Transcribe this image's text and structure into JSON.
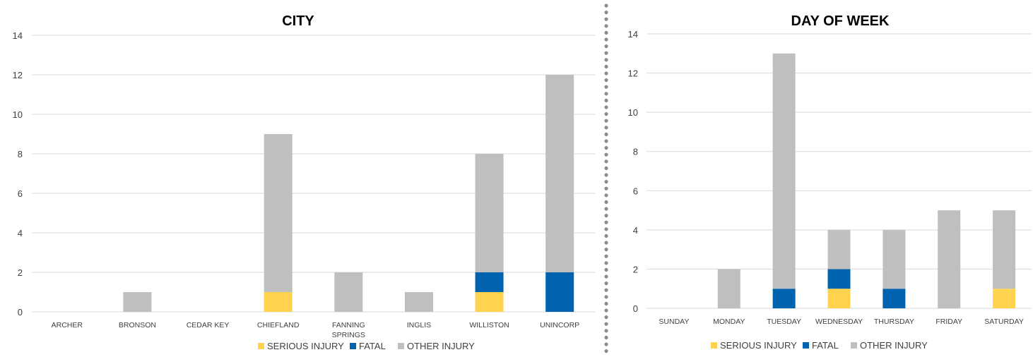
{
  "legend": {
    "serious": "SERIOUS INJURY",
    "fatal": "FATAL",
    "other": "OTHER INJURY"
  },
  "colors": {
    "serious": "#FFD34D",
    "fatal": "#0063B0",
    "other": "#BFBFBF",
    "divider": "#8C8C8C"
  },
  "chart_data": [
    {
      "type": "bar",
      "stacked": true,
      "title": "CITY",
      "categories": [
        "ARCHER",
        "BRONSON",
        "CEDAR KEY",
        "CHIEFLAND",
        "FANNING SPRINGS",
        "INGLIS",
        "WILLISTON",
        "UNINCORP"
      ],
      "series": [
        {
          "name": "SERIOUS INJURY",
          "key": "serious",
          "values": [
            0,
            0,
            0,
            1,
            0,
            0,
            1,
            0
          ]
        },
        {
          "name": "FATAL",
          "key": "fatal",
          "values": [
            0,
            0,
            0,
            0,
            0,
            0,
            1,
            2
          ]
        },
        {
          "name": "OTHER INJURY",
          "key": "other",
          "values": [
            0,
            1,
            0,
            8,
            2,
            1,
            6,
            10
          ]
        }
      ],
      "ylim": [
        0,
        14
      ],
      "yticks": [
        0,
        2,
        4,
        6,
        8,
        10,
        12,
        14
      ],
      "grid": true,
      "legend_position": "bottom"
    },
    {
      "type": "bar",
      "stacked": true,
      "title": "DAY OF WEEK",
      "categories": [
        "SUNDAY",
        "MONDAY",
        "TUESDAY",
        "WEDNESDAY",
        "THURSDAY",
        "FRIDAY",
        "SATURDAY"
      ],
      "series": [
        {
          "name": "SERIOUS INJURY",
          "key": "serious",
          "values": [
            0,
            0,
            0,
            1,
            0,
            0,
            1
          ]
        },
        {
          "name": "FATAL",
          "key": "fatal",
          "values": [
            0,
            0,
            1,
            1,
            1,
            0,
            0
          ]
        },
        {
          "name": "OTHER INJURY",
          "key": "other",
          "values": [
            0,
            2,
            12,
            2,
            3,
            5,
            4
          ]
        }
      ],
      "ylim": [
        0,
        14
      ],
      "yticks": [
        0,
        2,
        4,
        6,
        8,
        10,
        12,
        14
      ],
      "grid": true,
      "legend_position": "bottom"
    }
  ]
}
